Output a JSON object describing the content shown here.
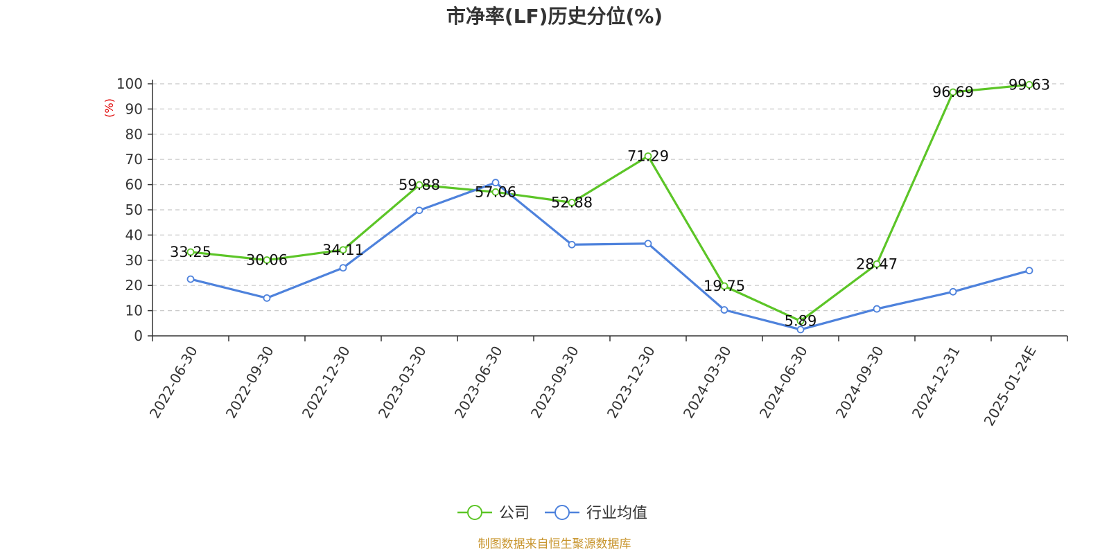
{
  "chart_data": {
    "type": "line",
    "title": "市净率(LF)历史分位(%)",
    "ylabel": "(%)",
    "xlabel": "",
    "ylim": [
      0,
      100
    ],
    "yticks": [
      0,
      10,
      20,
      30,
      40,
      50,
      60,
      70,
      80,
      90,
      100
    ],
    "grid": true,
    "legend_position": "bottom",
    "categories": [
      "2022-06-30",
      "2022-09-30",
      "2022-12-30",
      "2023-03-30",
      "2023-06-30",
      "2023-09-30",
      "2023-12-30",
      "2024-03-30",
      "2024-06-30",
      "2024-09-30",
      "2024-12-31",
      "2025-01-24E"
    ],
    "series": [
      {
        "name": "公司",
        "color": "#5cc527",
        "values": [
          33.25,
          30.06,
          34.11,
          59.88,
          57.06,
          52.88,
          71.29,
          19.75,
          5.89,
          28.47,
          96.69,
          99.63
        ],
        "labels": [
          "33.25",
          "30.06",
          "34.11",
          "59.88",
          "57.06",
          "52.88",
          "71.29",
          "19.75",
          "5.89",
          "28.47",
          "96.69",
          "99.63"
        ]
      },
      {
        "name": "行业均值",
        "color": "#4e82dc",
        "values": [
          22.5,
          15.0,
          27.0,
          49.8,
          60.8,
          36.2,
          36.6,
          10.3,
          2.5,
          10.7,
          17.5,
          25.9
        ]
      }
    ],
    "source": "制图数据来自恒生聚源数据库"
  }
}
